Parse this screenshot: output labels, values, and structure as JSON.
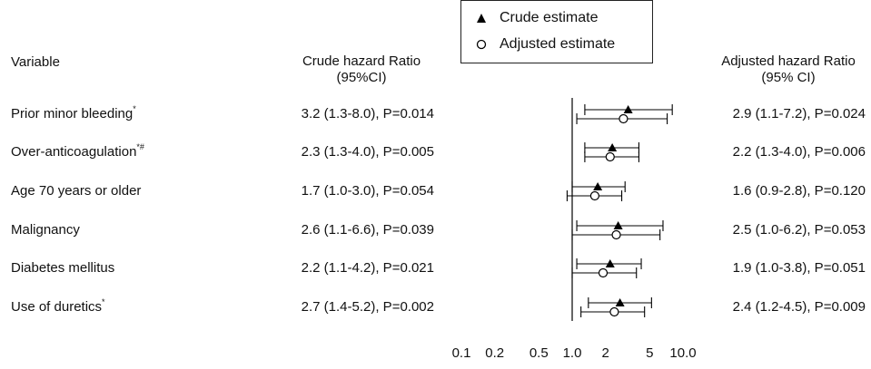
{
  "headers": {
    "variable": "Variable",
    "crude_line1": "Crude hazard Ratio",
    "crude_line2": "(95%CI)",
    "adjusted_line1": "Adjusted hazard Ratio",
    "adjusted_line2": "(95% CI)"
  },
  "legend": {
    "crude": "Crude estimate",
    "adjusted": "Adjusted estimate"
  },
  "rows": [
    {
      "label": "Prior minor bleeding",
      "mark": "*",
      "crude_text": "3.2 (1.3-8.0), P=0.014",
      "adjusted_text": "2.9 (1.1-7.2), P=0.024"
    },
    {
      "label": "Over-anticoagulation",
      "mark": "*#",
      "crude_text": "2.3 (1.3-4.0), P=0.005",
      "adjusted_text": "2.2 (1.3-4.0), P=0.006"
    },
    {
      "label": "Age 70 years or older",
      "mark": "",
      "crude_text": "1.7 (1.0-3.0), P=0.054",
      "adjusted_text": "1.6 (0.9-2.8), P=0.120"
    },
    {
      "label": "Malignancy",
      "mark": "",
      "crude_text": "2.6 (1.1-6.6), P=0.039",
      "adjusted_text": "2.5 (1.0-6.2), P=0.053"
    },
    {
      "label": "Diabetes mellitus",
      "mark": "",
      "crude_text": "2.2 (1.1-4.2), P=0.021",
      "adjusted_text": "1.9 (1.0-3.8), P=0.051"
    },
    {
      "label": "Use of duretics",
      "mark": "*",
      "crude_text": "2.7 (1.4-5.2), P=0.002",
      "adjusted_text": "2.4 (1.2-4.5), P=0.009"
    }
  ],
  "chart_data": {
    "type": "scatter",
    "chart_kind": "forest plot",
    "xscale": "log",
    "xlim": [
      0.1,
      10.0
    ],
    "x_ticks": [
      "0.1",
      "0.2",
      "0.5",
      "1.0",
      "2",
      "5",
      "10.0"
    ],
    "x_tick_values": [
      0.1,
      0.2,
      0.5,
      1.0,
      2,
      5,
      10.0
    ],
    "reference_line": 1.0,
    "categories": [
      "Prior minor bleeding",
      "Over-anticoagulation",
      "Age 70 years or older",
      "Malignancy",
      "Diabetes mellitus",
      "Use of duretics"
    ],
    "series": [
      {
        "name": "Crude estimate",
        "marker": "filled-triangle",
        "estimate": [
          3.2,
          2.3,
          1.7,
          2.6,
          2.2,
          2.7
        ],
        "lower": [
          1.3,
          1.3,
          1.0,
          1.1,
          1.1,
          1.4
        ],
        "upper": [
          8.0,
          4.0,
          3.0,
          6.6,
          4.2,
          5.2
        ],
        "p_value": [
          0.014,
          0.005,
          0.054,
          0.039,
          0.021,
          0.002
        ]
      },
      {
        "name": "Adjusted estimate",
        "marker": "open-circle",
        "estimate": [
          2.9,
          2.2,
          1.6,
          2.5,
          1.9,
          2.4
        ],
        "lower": [
          1.1,
          1.3,
          0.9,
          1.0,
          1.0,
          1.2
        ],
        "upper": [
          7.2,
          4.0,
          2.8,
          6.2,
          3.8,
          4.5
        ],
        "p_value": [
          0.024,
          0.006,
          0.12,
          0.053,
          0.051,
          0.009
        ]
      }
    ],
    "legend_position": "top-center",
    "grid": false
  }
}
